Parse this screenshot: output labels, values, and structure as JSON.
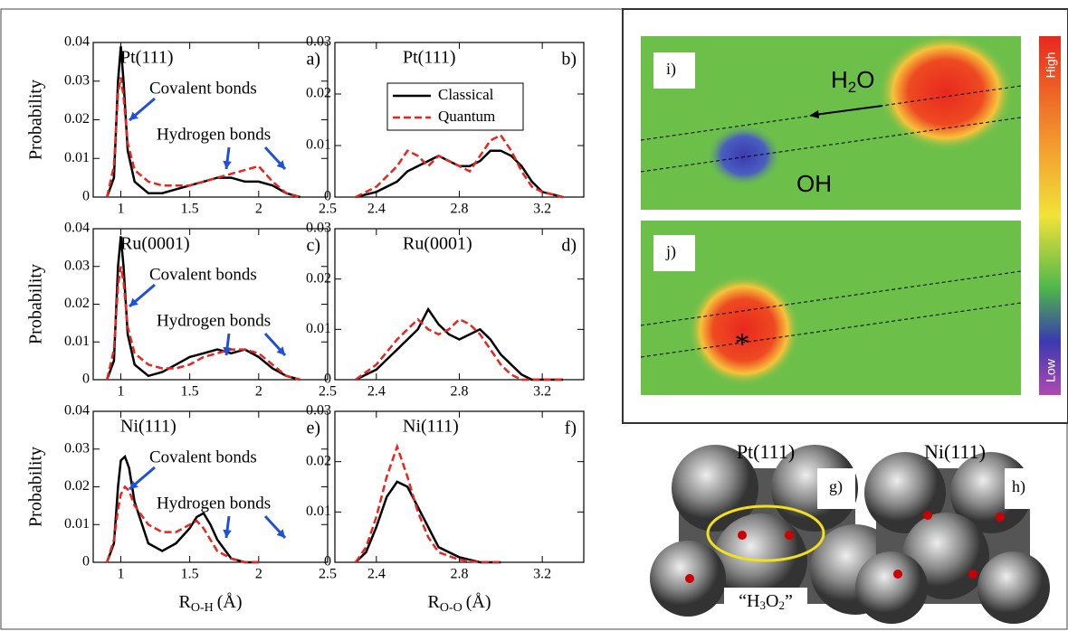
{
  "chart_data": [
    {
      "type": "line",
      "title": "Pt(111)",
      "panel_label": "a)",
      "annotations": [
        "Covalent bonds",
        "Hydrogen bonds"
      ],
      "ylabel": "Probability",
      "xlim": [
        0.8,
        2.5
      ],
      "ylim": [
        0,
        0.04
      ],
      "xticks": [
        1,
        1.5,
        2,
        2.5
      ],
      "yticks": [
        0,
        0.01,
        0.02,
        0.03,
        0.04
      ],
      "x": [
        0.9,
        0.95,
        0.98,
        1.0,
        1.02,
        1.05,
        1.1,
        1.2,
        1.3,
        1.4,
        1.5,
        1.6,
        1.7,
        1.8,
        1.9,
        2.0,
        2.1,
        2.2,
        2.3
      ],
      "series": [
        {
          "color": "#000000",
          "linestyle": "solid",
          "values": [
            0,
            0.005,
            0.03,
            0.039,
            0.03,
            0.012,
            0.004,
            0.001,
            0.001,
            0.002,
            0.003,
            0.004,
            0.005,
            0.005,
            0.004,
            0.004,
            0.003,
            0.001,
            0
          ]
        },
        {
          "color": "#e8251f",
          "linestyle": "dashed",
          "values": [
            0,
            0.008,
            0.027,
            0.031,
            0.026,
            0.014,
            0.007,
            0.004,
            0.003,
            0.003,
            0.003,
            0.004,
            0.005,
            0.006,
            0.007,
            0.008,
            0.004,
            0.001,
            0
          ]
        }
      ]
    },
    {
      "type": "line",
      "title": "Pt(111)",
      "panel_label": "b)",
      "legend": "upper right",
      "xlim": [
        2.2,
        3.4
      ],
      "ylim": [
        0,
        0.03
      ],
      "xticks": [
        2.4,
        2.8,
        3.2
      ],
      "yticks": [
        0,
        0.01,
        0.02,
        0.03
      ],
      "x": [
        2.3,
        2.4,
        2.5,
        2.55,
        2.6,
        2.65,
        2.7,
        2.75,
        2.8,
        2.85,
        2.9,
        2.95,
        3.0,
        3.05,
        3.1,
        3.15,
        3.2,
        3.3
      ],
      "series": [
        {
          "name": "Classical",
          "color": "#000000",
          "linestyle": "solid",
          "values": [
            0,
            0.001,
            0.003,
            0.005,
            0.006,
            0.007,
            0.008,
            0.007,
            0.006,
            0.006,
            0.007,
            0.009,
            0.009,
            0.008,
            0.006,
            0.003,
            0.001,
            0
          ]
        },
        {
          "name": "Quantum",
          "color": "#e8251f",
          "linestyle": "dashed",
          "values": [
            0,
            0.002,
            0.006,
            0.009,
            0.008,
            0.006,
            0.008,
            0.007,
            0.006,
            0.005,
            0.008,
            0.011,
            0.012,
            0.009,
            0.005,
            0.002,
            0.001,
            0
          ]
        }
      ]
    },
    {
      "type": "line",
      "title": "Ru(0001)",
      "panel_label": "c)",
      "annotations": [
        "Covalent bonds",
        "Hydrogen bonds"
      ],
      "ylabel": "Probability",
      "xlim": [
        0.8,
        2.5
      ],
      "ylim": [
        0,
        0.04
      ],
      "xticks": [
        1,
        1.5,
        2,
        2.5
      ],
      "yticks": [
        0,
        0.01,
        0.02,
        0.03,
        0.04
      ],
      "x": [
        0.9,
        0.95,
        0.98,
        1.0,
        1.02,
        1.05,
        1.1,
        1.2,
        1.3,
        1.4,
        1.5,
        1.6,
        1.7,
        1.8,
        1.9,
        2.0,
        2.1,
        2.2,
        2.3
      ],
      "series": [
        {
          "color": "#000000",
          "linestyle": "solid",
          "values": [
            0,
            0.005,
            0.03,
            0.038,
            0.03,
            0.012,
            0.004,
            0.001,
            0.002,
            0.004,
            0.006,
            0.007,
            0.008,
            0.007,
            0.008,
            0.006,
            0.003,
            0.001,
            0
          ]
        },
        {
          "color": "#e8251f",
          "linestyle": "dashed",
          "values": [
            0,
            0.008,
            0.025,
            0.03,
            0.026,
            0.014,
            0.007,
            0.004,
            0.003,
            0.003,
            0.004,
            0.006,
            0.007,
            0.008,
            0.008,
            0.007,
            0.004,
            0.001,
            0
          ]
        }
      ]
    },
    {
      "type": "line",
      "title": "Ru(0001)",
      "panel_label": "d)",
      "xlim": [
        2.2,
        3.4
      ],
      "ylim": [
        0,
        0.03
      ],
      "xticks": [
        2.4,
        2.8,
        3.2
      ],
      "yticks": [
        0,
        0.01,
        0.02,
        0.03
      ],
      "x": [
        2.3,
        2.4,
        2.5,
        2.55,
        2.6,
        2.65,
        2.7,
        2.75,
        2.8,
        2.85,
        2.9,
        2.95,
        3.0,
        3.05,
        3.1,
        3.15,
        3.2,
        3.3
      ],
      "series": [
        {
          "color": "#000000",
          "linestyle": "solid",
          "values": [
            0,
            0.002,
            0.006,
            0.008,
            0.01,
            0.014,
            0.011,
            0.009,
            0.008,
            0.009,
            0.01,
            0.008,
            0.005,
            0.003,
            0.001,
            0,
            0,
            0
          ]
        },
        {
          "color": "#e8251f",
          "linestyle": "dashed",
          "values": [
            0,
            0.003,
            0.008,
            0.01,
            0.012,
            0.01,
            0.009,
            0.01,
            0.012,
            0.011,
            0.009,
            0.006,
            0.003,
            0.001,
            0,
            0,
            0,
            0
          ]
        }
      ]
    },
    {
      "type": "line",
      "title": "Ni(111)",
      "panel_label": "e)",
      "annotations": [
        "Covalent bonds",
        "Hydrogen bonds"
      ],
      "ylabel": "Probability",
      "xlabel": "R",
      "xlabel_subscript": "O-H",
      "xlabel_unit": "(Å)",
      "xlim": [
        0.8,
        2.5
      ],
      "ylim": [
        0,
        0.04
      ],
      "xticks": [
        1,
        1.5,
        2,
        2.5
      ],
      "yticks": [
        0,
        0.01,
        0.02,
        0.03,
        0.04
      ],
      "x": [
        0.9,
        0.95,
        0.98,
        1.0,
        1.03,
        1.06,
        1.1,
        1.2,
        1.3,
        1.4,
        1.5,
        1.55,
        1.6,
        1.65,
        1.7,
        1.8,
        1.9,
        2.0
      ],
      "series": [
        {
          "color": "#000000",
          "linestyle": "solid",
          "values": [
            0,
            0.005,
            0.02,
            0.027,
            0.028,
            0.025,
            0.016,
            0.005,
            0.003,
            0.005,
            0.009,
            0.012,
            0.013,
            0.01,
            0.006,
            0.001,
            0,
            0
          ]
        },
        {
          "color": "#e8251f",
          "linestyle": "dashed",
          "values": [
            0,
            0.006,
            0.014,
            0.018,
            0.02,
            0.019,
            0.015,
            0.01,
            0.008,
            0.008,
            0.01,
            0.011,
            0.009,
            0.006,
            0.003,
            0.001,
            0,
            0
          ]
        }
      ]
    },
    {
      "type": "line",
      "title": "Ni(111)",
      "panel_label": "f)",
      "xlabel": "R",
      "xlabel_subscript": "O-O",
      "xlabel_unit": "(Å)",
      "xlim": [
        2.2,
        3.4
      ],
      "ylim": [
        0,
        0.03
      ],
      "xticks": [
        2.4,
        2.8,
        3.2
      ],
      "yticks": [
        0,
        0.01,
        0.02,
        0.03
      ],
      "x": [
        2.3,
        2.35,
        2.4,
        2.45,
        2.5,
        2.55,
        2.6,
        2.65,
        2.7,
        2.8,
        2.9,
        3.0
      ],
      "series": [
        {
          "color": "#000000",
          "linestyle": "solid",
          "values": [
            0,
            0.002,
            0.007,
            0.013,
            0.016,
            0.015,
            0.011,
            0.007,
            0.003,
            0.001,
            0,
            0
          ]
        },
        {
          "color": "#e8251f",
          "linestyle": "dashed",
          "values": [
            0,
            0.003,
            0.009,
            0.017,
            0.023,
            0.017,
            0.01,
            0.005,
            0.002,
            0.0005,
            0,
            0
          ]
        }
      ]
    }
  ],
  "maps": {
    "i": {
      "label": "i)",
      "water": [
        "H",
        "2",
        "O"
      ],
      "hydroxyl": "OH"
    },
    "j": {
      "label": "j)",
      "marker": "*"
    },
    "colorbar": {
      "high": "High",
      "low": "Low"
    }
  },
  "surfaces": {
    "g": {
      "title": "Pt(111)",
      "label": "g)",
      "species": [
        "“H",
        "3",
        "O",
        "2",
        "”"
      ]
    },
    "h": {
      "title": "Ni(111)",
      "label": "h)"
    }
  }
}
